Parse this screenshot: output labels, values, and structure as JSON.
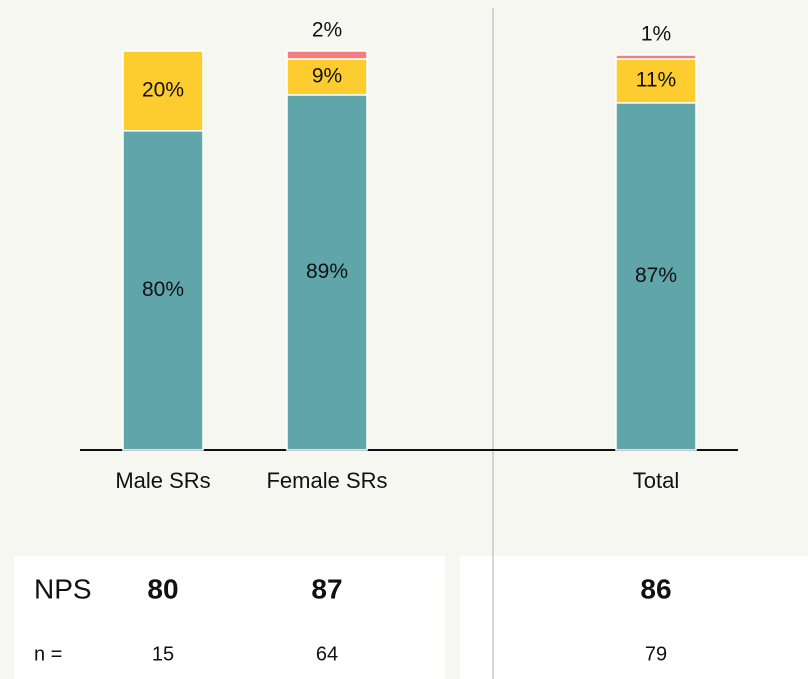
{
  "chart_data": {
    "type": "stacked_bar",
    "categories": [
      "Male SRs",
      "Female SRs",
      "Total"
    ],
    "series": [
      {
        "color": "#5fa5aa",
        "values": [
          80,
          89,
          87
        ],
        "value_labels": [
          "80%",
          "89%",
          "87%"
        ]
      },
      {
        "color": "#fdcc2e",
        "values": [
          20,
          9,
          11
        ],
        "value_labels": [
          "20%",
          "9%",
          "11%"
        ]
      },
      {
        "color": "#f08080",
        "values": [
          null,
          2,
          1
        ],
        "value_labels": [
          null,
          "2%",
          "1%"
        ]
      }
    ],
    "ylim": [
      0,
      100
    ]
  },
  "table": {
    "rows": [
      {
        "label": "NPS",
        "values": [
          80,
          87,
          86
        ]
      },
      {
        "label": "n =",
        "values": [
          15,
          64,
          79
        ]
      }
    ]
  }
}
